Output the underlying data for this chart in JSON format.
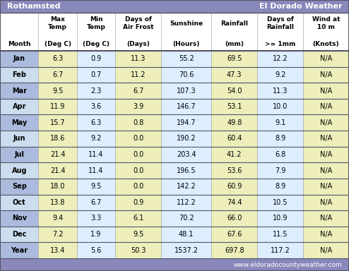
{
  "title_left": "Rothamsted",
  "title_right": "El Dorado Weather",
  "website": "www.eldoradocountyweather.com",
  "headers_line1": [
    "",
    "Max\nTemp",
    "Min\nTemp",
    "Days of\nAir Frost",
    "Sunshine",
    "Rainfall",
    "Days of\nRainfall",
    "Wind at\n10 m"
  ],
  "headers_line2": [
    "Month",
    "(Deg C)",
    "(Deg C)",
    "(Days)",
    "(Hours)",
    "(mm)",
    ">= 1mm",
    "(Knots)"
  ],
  "rows": [
    [
      "Jan",
      "6.3",
      "0.9",
      "11.3",
      "55.2",
      "69.5",
      "12.2",
      "N/A"
    ],
    [
      "Feb",
      "6.7",
      "0.7",
      "11.2",
      "70.6",
      "47.3",
      "9.2",
      "N/A"
    ],
    [
      "Mar",
      "9.5",
      "2.3",
      "6.7",
      "107.3",
      "54.0",
      "11.3",
      "N/A"
    ],
    [
      "Apr",
      "11.9",
      "3.6",
      "3.9",
      "146.7",
      "53.1",
      "10.0",
      "N/A"
    ],
    [
      "May",
      "15.7",
      "6.3",
      "0.8",
      "194.7",
      "49.8",
      "9.1",
      "N/A"
    ],
    [
      "Jun",
      "18.6",
      "9.2",
      "0.0",
      "190.2",
      "60.4",
      "8.9",
      "N/A"
    ],
    [
      "Jul",
      "21.4",
      "11.4",
      "0.0",
      "203.4",
      "41.2",
      "6.8",
      "N/A"
    ],
    [
      "Aug",
      "21.4",
      "11.4",
      "0.0",
      "196.5",
      "53.6",
      "7.9",
      "N/A"
    ],
    [
      "Sep",
      "18.0",
      "9.5",
      "0.0",
      "142.2",
      "60.9",
      "8.9",
      "N/A"
    ],
    [
      "Oct",
      "13.8",
      "6.7",
      "0.9",
      "112.2",
      "74.4",
      "10.5",
      "N/A"
    ],
    [
      "Nov",
      "9.4",
      "3.3",
      "6.1",
      "70.2",
      "66.0",
      "10.9",
      "N/A"
    ],
    [
      "Dec",
      "7.2",
      "1.9",
      "9.5",
      "48.1",
      "67.6",
      "11.5",
      "N/A"
    ],
    [
      "Year",
      "13.4",
      "5.6",
      "50.3",
      "1537.2",
      "697.8",
      "117.2",
      "N/A"
    ]
  ],
  "title_bg": "#8888bb",
  "title_text": "#ffffff",
  "footer_bg": "#8888bb",
  "footer_text": "#ffffff",
  "header_bg": "#ffffff",
  "month_odd_bg": "#aabbdd",
  "month_even_bg": "#ccddee",
  "data_yellow": "#eeeebb",
  "data_blue": "#ddeeff",
  "year_month_bg": "#aabbdd",
  "border_dark": "#555566",
  "border_light": "#aaaaaa",
  "figsize": [
    4.94,
    3.84
  ],
  "dpi": 100
}
